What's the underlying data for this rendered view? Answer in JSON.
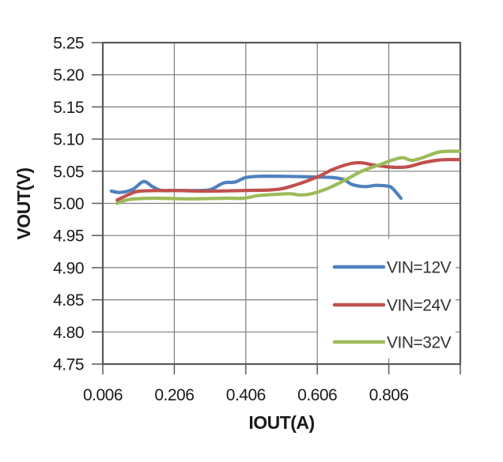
{
  "chart_data": {
    "type": "line",
    "title": "",
    "xlabel": "IOUT(A)",
    "ylabel": "VOUT(V)",
    "xlim": [
      0.006,
      1.006
    ],
    "ylim": [
      4.75,
      5.25
    ],
    "grid": true,
    "background_color": "#ffffff",
    "axis_color": "#595959",
    "grid_color": "#7f7f7f",
    "text_color": "#1a1a1a",
    "x_ticks": [
      {
        "value": 0.006,
        "label": "0.006"
      },
      {
        "value": 0.206,
        "label": "0.206"
      },
      {
        "value": 0.406,
        "label": "0.406"
      },
      {
        "value": 0.606,
        "label": "0.606"
      },
      {
        "value": 0.806,
        "label": "0.806"
      },
      {
        "value": 1.006,
        "label": ""
      }
    ],
    "y_ticks": [
      {
        "value": 4.75,
        "label": "4.75"
      },
      {
        "value": 4.8,
        "label": "4.80"
      },
      {
        "value": 4.85,
        "label": "4.85"
      },
      {
        "value": 4.9,
        "label": "4.90"
      },
      {
        "value": 4.95,
        "label": "4.95"
      },
      {
        "value": 5.0,
        "label": "5.00"
      },
      {
        "value": 5.05,
        "label": "5.05"
      },
      {
        "value": 5.1,
        "label": "5.10"
      },
      {
        "value": 5.15,
        "label": "5.15"
      },
      {
        "value": 5.2,
        "label": "5.20"
      },
      {
        "value": 5.25,
        "label": "5.25"
      }
    ],
    "legend": {
      "position": "inside-bottom-right",
      "entries": [
        "VIN=12V",
        "VIN=24V",
        "VIN=32V"
      ]
    },
    "series": [
      {
        "name": "VIN=12V",
        "color": "#4F81BD",
        "points": [
          [
            0.03,
            5.019
          ],
          [
            0.055,
            5.017
          ],
          [
            0.09,
            5.022
          ],
          [
            0.12,
            5.034
          ],
          [
            0.145,
            5.026
          ],
          [
            0.17,
            5.02
          ],
          [
            0.21,
            5.02
          ],
          [
            0.28,
            5.02
          ],
          [
            0.31,
            5.022
          ],
          [
            0.345,
            5.032
          ],
          [
            0.375,
            5.033
          ],
          [
            0.405,
            5.04
          ],
          [
            0.44,
            5.042
          ],
          [
            0.52,
            5.042
          ],
          [
            0.6,
            5.041
          ],
          [
            0.65,
            5.04
          ],
          [
            0.68,
            5.037
          ],
          [
            0.705,
            5.029
          ],
          [
            0.74,
            5.026
          ],
          [
            0.77,
            5.028
          ],
          [
            0.8,
            5.027
          ],
          [
            0.815,
            5.024
          ],
          [
            0.84,
            5.008
          ]
        ]
      },
      {
        "name": "VIN=24V",
        "color": "#C0504D",
        "points": [
          [
            0.046,
            5.005
          ],
          [
            0.08,
            5.014
          ],
          [
            0.11,
            5.019
          ],
          [
            0.2,
            5.02
          ],
          [
            0.3,
            5.019
          ],
          [
            0.4,
            5.02
          ],
          [
            0.48,
            5.021
          ],
          [
            0.53,
            5.026
          ],
          [
            0.606,
            5.041
          ],
          [
            0.65,
            5.053
          ],
          [
            0.7,
            5.062
          ],
          [
            0.73,
            5.063
          ],
          [
            0.76,
            5.06
          ],
          [
            0.8,
            5.057
          ],
          [
            0.83,
            5.056
          ],
          [
            0.86,
            5.057
          ],
          [
            0.9,
            5.063
          ],
          [
            0.94,
            5.067
          ],
          [
            0.97,
            5.068
          ],
          [
            1.004,
            5.068
          ]
        ]
      },
      {
        "name": "VIN=32V",
        "color": "#9BBB59",
        "points": [
          [
            0.046,
            5.0
          ],
          [
            0.08,
            5.006
          ],
          [
            0.15,
            5.008
          ],
          [
            0.25,
            5.007
          ],
          [
            0.35,
            5.008
          ],
          [
            0.4,
            5.008
          ],
          [
            0.44,
            5.012
          ],
          [
            0.49,
            5.014
          ],
          [
            0.53,
            5.015
          ],
          [
            0.56,
            5.013
          ],
          [
            0.59,
            5.015
          ],
          [
            0.63,
            5.022
          ],
          [
            0.68,
            5.035
          ],
          [
            0.73,
            5.05
          ],
          [
            0.78,
            5.06
          ],
          [
            0.82,
            5.068
          ],
          [
            0.845,
            5.071
          ],
          [
            0.87,
            5.067
          ],
          [
            0.9,
            5.071
          ],
          [
            0.94,
            5.079
          ],
          [
            0.97,
            5.081
          ],
          [
            1.004,
            5.081
          ]
        ]
      }
    ]
  }
}
